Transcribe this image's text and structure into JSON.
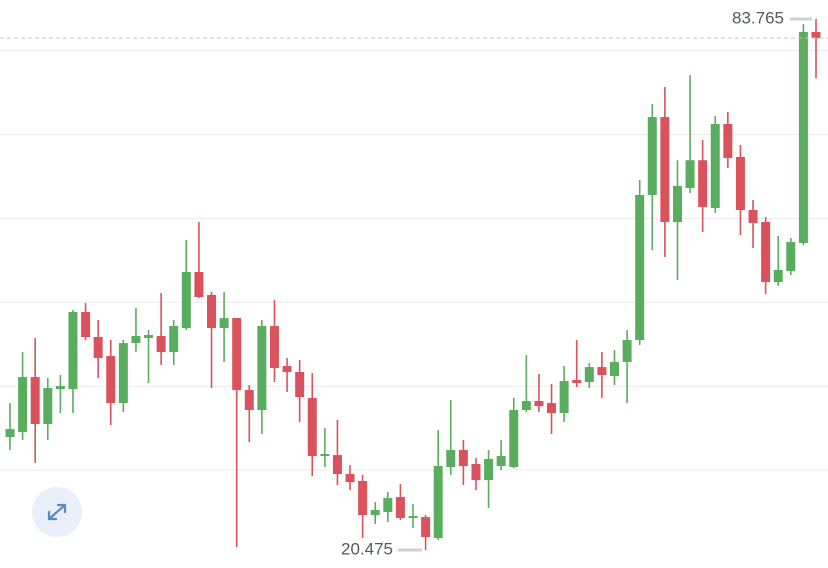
{
  "chart_data": {
    "type": "candlestick",
    "up_color": "#5aad5e",
    "down_color": "#d9525c",
    "grid": true,
    "ylim": [
      18.33,
      86.03
    ],
    "gridlines": [
      30,
      40,
      50,
      60,
      70,
      80
    ],
    "open": [
      33.94,
      34.53,
      41.09,
      35.49,
      39.66,
      39.66,
      48.84,
      45.86,
      43.6,
      37.99,
      45.14,
      45.74,
      45.98,
      44.07,
      46.93,
      53.61,
      50.87,
      46.93,
      48.12,
      39.54,
      37.16,
      47.17,
      42.4,
      41.69,
      38.59,
      31.67,
      31.79,
      29.53,
      28.7,
      24.64,
      25.0,
      26.79,
      24.29,
      24.4,
      21.9,
      30.36,
      32.39,
      30.72,
      28.81,
      30.48,
      30.36,
      37.16,
      38.23,
      37.99,
      36.8,
      40.74,
      40.5,
      42.28,
      41.21,
      42.88,
      45.5,
      62.79,
      72.08,
      59.57,
      63.62,
      66.93,
      61.24,
      71.25,
      67.32,
      61.0,
      59.57,
      52.42,
      53.73,
      57.06,
      82.22
    ],
    "high": [
      37.99,
      44.07,
      45.74,
      40.97,
      41.33,
      49.08,
      49.91,
      47.89,
      45.5,
      45.5,
      49.32,
      46.69,
      51.1,
      47.89,
      57.42,
      59.57,
      51.22,
      51.22,
      48.12,
      40.14,
      47.89,
      50.27,
      43.36,
      43.12,
      41.57,
      35.01,
      35.97,
      30.6,
      29.41,
      26.19,
      27.38,
      28.34,
      25.95,
      24.64,
      34.77,
      38.35,
      33.58,
      31.44,
      32.39,
      33.58,
      38.59,
      43.71,
      41.45,
      40.26,
      42.4,
      45.5,
      42.76,
      44.07,
      44.31,
      46.69,
      64.57,
      73.63,
      75.66,
      66.93,
      77.09,
      69.34,
      72.2,
      72.68,
      68.75,
      62.19,
      60.16,
      57.9,
      57.66,
      83.17,
      83.765
    ],
    "low": [
      32.39,
      33.58,
      30.84,
      33.58,
      36.8,
      36.8,
      45.5,
      40.97,
      35.37,
      36.92,
      44.07,
      40.38,
      42.52,
      42.52,
      46.69,
      50.51,
      39.78,
      42.88,
      20.83,
      33.34,
      34.3,
      40.5,
      39.3,
      35.73,
      29.29,
      30.36,
      28.22,
      27.62,
      21.9,
      23.57,
      23.81,
      24.05,
      23.09,
      20.475,
      21.66,
      29.41,
      28.22,
      27.62,
      25.48,
      30.01,
      30.24,
      36.92,
      36.92,
      34.3,
      35.73,
      39.9,
      39.78,
      38.59,
      40.14,
      37.99,
      44.91,
      56.23,
      55.4,
      52.65,
      63.02,
      58.38,
      60.64,
      66.0,
      58.02,
      56.47,
      50.98,
      51.94,
      53.25,
      56.83,
      76.73
    ],
    "close": [
      34.89,
      41.09,
      35.49,
      39.78,
      40.02,
      48.84,
      45.86,
      43.36,
      37.99,
      45.14,
      45.98,
      46.1,
      44.07,
      47.17,
      53.61,
      50.63,
      46.93,
      48.12,
      39.54,
      37.16,
      47.17,
      42.16,
      41.69,
      38.71,
      31.67,
      31.91,
      29.53,
      28.58,
      24.64,
      25.24,
      26.67,
      24.29,
      24.52,
      22.02,
      30.48,
      32.39,
      30.48,
      28.81,
      31.32,
      31.67,
      37.16,
      38.23,
      37.63,
      36.8,
      40.62,
      40.38,
      42.28,
      41.33,
      42.88,
      45.5,
      62.79,
      72.08,
      59.57,
      63.86,
      66.93,
      61.36,
      71.25,
      67.2,
      61.0,
      59.45,
      52.42,
      53.85,
      57.18,
      82.22,
      81.5
    ],
    "high_label": 83.765,
    "low_label": 20.475
  }
}
